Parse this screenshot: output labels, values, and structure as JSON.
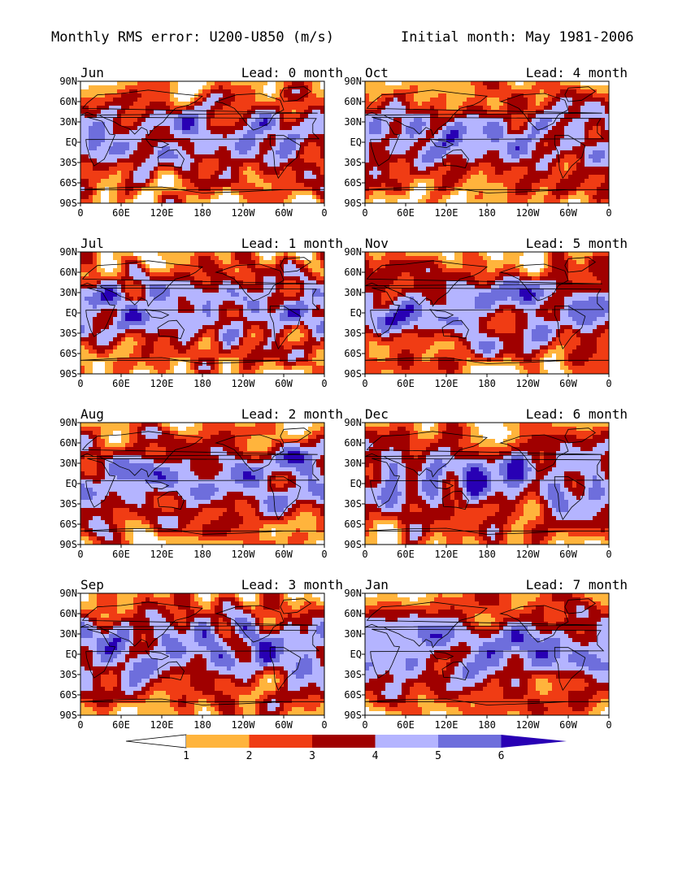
{
  "figure": {
    "title_left": "Monthly RMS error: U200-U850 (m/s)",
    "title_right": "Initial month: May 1981-2006",
    "lat_ticks": [
      "90N",
      "60N",
      "30N",
      "EQ",
      "30S",
      "60S",
      "90S"
    ],
    "lon_ticks": [
      "0",
      "60E",
      "120E",
      "180",
      "120W",
      "60W",
      "0"
    ],
    "ocean_outline_color": "#000000"
  },
  "panels": [
    {
      "month": "Jun",
      "lead": "Lead: 0 month"
    },
    {
      "month": "Oct",
      "lead": "Lead: 4 month"
    },
    {
      "month": "Jul",
      "lead": "Lead: 1 month"
    },
    {
      "month": "Nov",
      "lead": "Lead: 5 month"
    },
    {
      "month": "Aug",
      "lead": "Lead: 2 month"
    },
    {
      "month": "Dec",
      "lead": "Lead: 6 month"
    },
    {
      "month": "Sep",
      "lead": "Lead: 3 month"
    },
    {
      "month": "Jan",
      "lead": "Lead: 7 month"
    }
  ],
  "colorbar": {
    "levels": [
      "1",
      "2",
      "3",
      "4",
      "5",
      "6"
    ],
    "colors": [
      "#ffffff",
      "#ffb43c",
      "#f03c14",
      "#a00000",
      "#b4b4ff",
      "#6e6edc",
      "#2800b4"
    ]
  }
}
